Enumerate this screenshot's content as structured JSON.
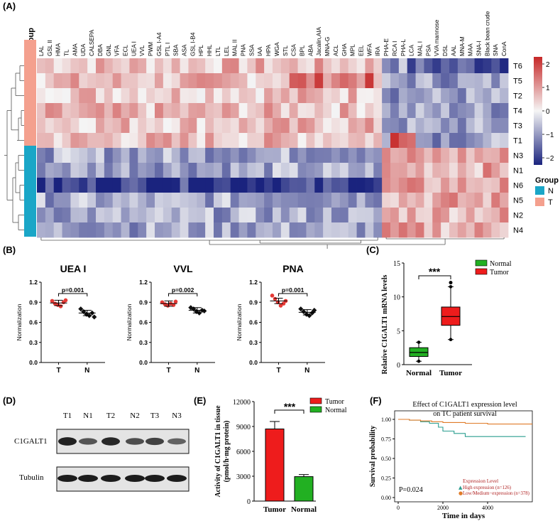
{
  "panel_labels": [
    "(A)",
    "(B)",
    "(C)",
    "(D)",
    "(E)",
    "(F)"
  ],
  "heatmap": {
    "group_header": "Group",
    "lectins": [
      "LAL",
      "GSL II",
      "HMA",
      "TL",
      "AMA",
      "UDA",
      "CALSEPA",
      "DBA",
      "GNL",
      "VFA",
      "ECL",
      "UEA I",
      "VVL",
      "PWM",
      "GSL I-A4",
      "PTL I",
      "SBA",
      "ASA",
      "GSL I-B4",
      "HPL",
      "HHL",
      "LTL",
      "LEL",
      "MAL II",
      "PNA",
      "SSA",
      "IAA",
      "HPA",
      "WGA",
      "STL",
      "CSA",
      "BPL",
      "ABA",
      "Jacalin,AIA",
      "MNA-G",
      "ACL",
      "GHA",
      "MPL",
      "EEL",
      "WFA",
      "IRA",
      "PHA-E",
      "RCA I",
      "PHA-L",
      "LCA",
      "MAL I",
      "PSA",
      "VVA mannose",
      "DSL",
      "AAL",
      "MNA-M",
      "MAA",
      "SNA-I",
      "Black bean crude",
      "SNA",
      "ConA"
    ],
    "samples": [
      "T6",
      "T5",
      "T2",
      "T4",
      "T3",
      "T1",
      "N3",
      "N1",
      "N6",
      "N5",
      "N2",
      "N4"
    ],
    "sample_groups": [
      "T",
      "T",
      "T",
      "T",
      "T",
      "T",
      "N",
      "N",
      "N",
      "N",
      "N",
      "N"
    ],
    "colorbar_ticks": [
      "2",
      "1",
      "0",
      "−1",
      "−2"
    ],
    "legend_title": "Group",
    "legend_items": [
      {
        "label": "N",
        "color": "#1aa6c7"
      },
      {
        "label": "T",
        "color": "#f4a08e"
      }
    ],
    "colors": {
      "high": "#c62828",
      "mid": "#f5f5f5",
      "low": "#1a237e",
      "group_T": "#f4a08e",
      "group_N": "#1aa6c7"
    }
  },
  "panelB": [
    {
      "title": "UEA I",
      "pvalue": "p=0.001",
      "ylabel": "Normalization",
      "yticks": [
        "1.2",
        "0.9",
        "0.6",
        "0.3",
        "0.0"
      ],
      "xticks": [
        "T",
        "N"
      ],
      "T": [
        0.92,
        0.88,
        0.86,
        0.84,
        0.9,
        0.93
      ],
      "N": [
        0.8,
        0.76,
        0.72,
        0.7,
        0.74,
        0.68
      ],
      "T_mean": 0.89,
      "N_mean": 0.74
    },
    {
      "title": "VVL",
      "pvalue": "p=0.002",
      "ylabel": "Normalization",
      "yticks": [
        "1.2",
        "0.9",
        "0.6",
        "0.3",
        "0.0"
      ],
      "xticks": [
        "T",
        "N"
      ],
      "T": [
        0.9,
        0.87,
        0.85,
        0.88,
        0.86,
        0.91
      ],
      "N": [
        0.82,
        0.8,
        0.76,
        0.74,
        0.78,
        0.77
      ],
      "T_mean": 0.88,
      "N_mean": 0.78
    },
    {
      "title": "PNA",
      "pvalue": "p=0.001",
      "ylabel": "Normalization",
      "yticks": [
        "1.2",
        "0.9",
        "0.6",
        "0.3",
        "0.0"
      ],
      "xticks": [
        "T",
        "N"
      ],
      "T": [
        1.0,
        0.95,
        0.9,
        0.85,
        0.88,
        0.92
      ],
      "N": [
        0.8,
        0.76,
        0.72,
        0.7,
        0.74,
        0.78
      ],
      "T_mean": 0.92,
      "N_mean": 0.75
    }
  ],
  "chart_data": [
    {
      "type": "box",
      "title": "",
      "ylabel": "Relative C1GALT1 mRNA levels",
      "ylim": [
        0,
        15
      ],
      "yticks": [
        "0",
        "5",
        "10",
        "15"
      ],
      "categories": [
        "Normal",
        "Tumor"
      ],
      "significance": "***",
      "series": [
        {
          "name": "Normal",
          "color": "#22b022",
          "min": 0.5,
          "q1": 1.2,
          "median": 1.8,
          "q3": 2.5,
          "max": 3.3
        },
        {
          "name": "Tumor",
          "color": "#ee1c1c",
          "min": 3.7,
          "q1": 5.8,
          "median": 7.1,
          "q3": 8.5,
          "max": 11.5,
          "outlier": 12.1
        }
      ]
    },
    {
      "type": "bar",
      "ylabel": "Activity of C1GALT1 in tissue\n(pmol/h·mg protein)",
      "ylim": [
        0,
        12000
      ],
      "yticks": [
        "0",
        "3000",
        "6000",
        "9000",
        "12000"
      ],
      "categories": [
        "Tumor",
        "Normal"
      ],
      "significance": "***",
      "series": [
        {
          "name": "Tumor",
          "color": "#ee1c1c",
          "value": 8700,
          "error": 900
        },
        {
          "name": "Normal",
          "color": "#22b022",
          "value": 2950,
          "error": 250
        }
      ]
    },
    {
      "type": "line",
      "title": "Effect of C1GALT1 expression level\non TC patient survival",
      "xlabel": "Time in days",
      "ylabel": "Survival probability",
      "xticks": [
        "0",
        "2000",
        "4000"
      ],
      "yticks": [
        "1.00",
        "0.75",
        "0.50",
        "0.25",
        "0.00"
      ],
      "xlim": [
        0,
        6000
      ],
      "ylim": [
        0,
        1
      ],
      "pvalue": "P=0.024",
      "legend_title": "Expression Level",
      "series": [
        {
          "name": "High expression (n=126)",
          "color": "#2a9d8f",
          "x": [
            0,
            500,
            1000,
            1400,
            1800,
            2000,
            2500,
            3000,
            4000,
            5000,
            5700
          ],
          "y": [
            1.0,
            0.99,
            0.97,
            0.95,
            0.9,
            0.85,
            0.82,
            0.78,
            0.78,
            0.78,
            0.78
          ]
        },
        {
          "name": "Low/Medium−expression (n=378)",
          "color": "#e07b28",
          "x": [
            0,
            500,
            1000,
            1500,
            2000,
            3000,
            4000,
            5000,
            6000
          ],
          "y": [
            1.0,
            0.99,
            0.98,
            0.97,
            0.96,
            0.95,
            0.94,
            0.94,
            0.94
          ]
        }
      ]
    }
  ],
  "western": {
    "lanes": [
      "T1",
      "N1",
      "T2",
      "N2",
      "T3",
      "N3"
    ],
    "rows": [
      "C1GALT1",
      "Tubulin"
    ],
    "c1galt1_intensity": [
      0.95,
      0.55,
      0.9,
      0.6,
      0.7,
      0.45
    ],
    "tubulin_intensity": [
      0.95,
      0.95,
      0.95,
      0.95,
      0.95,
      0.95
    ]
  }
}
